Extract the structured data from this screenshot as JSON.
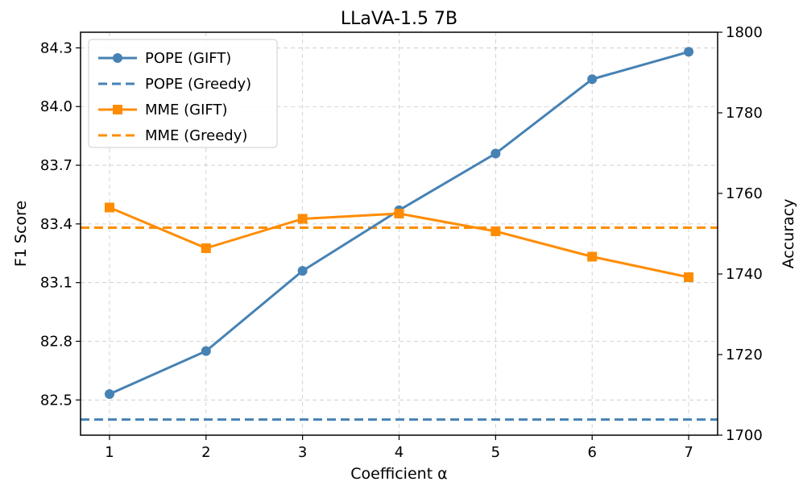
{
  "chart_data": {
    "type": "line",
    "title": "LLaVA-1.5 7B",
    "xlabel": "Coefficient α",
    "ylabel_left": "F1 Score",
    "ylabel_right": "Accuracy",
    "x": [
      1,
      2,
      3,
      4,
      5,
      6,
      7
    ],
    "x_ticks": [
      "1",
      "2",
      "3",
      "4",
      "5",
      "6",
      "7"
    ],
    "xlim": [
      0.7,
      7.3
    ],
    "ylim_left": [
      82.32,
      84.38
    ],
    "ylim_right": [
      1700,
      1800
    ],
    "y_ticks_left": [
      "82.5",
      "82.8",
      "83.1",
      "83.4",
      "83.7",
      "84.0",
      "84.3"
    ],
    "y_ticks_right": [
      "1700",
      "1720",
      "1740",
      "1760",
      "1780",
      "1800"
    ],
    "grid": true,
    "legend_position": "top-left",
    "series": [
      {
        "name": "POPE (GIFT)",
        "axis": "left",
        "kind": "line",
        "marker": "circle",
        "color": "#4682B4",
        "values": [
          82.53,
          82.75,
          83.16,
          83.47,
          83.76,
          84.14,
          84.28
        ]
      },
      {
        "name": "POPE (Greedy)",
        "axis": "left",
        "kind": "hline",
        "color": "#4682B4",
        "value": 82.4
      },
      {
        "name": "MME (GIFT)",
        "axis": "right",
        "kind": "line",
        "marker": "square",
        "color": "#FF8C00",
        "values": [
          1756.5,
          1746.4,
          1753.7,
          1755.0,
          1750.6,
          1744.3,
          1739.2
        ]
      },
      {
        "name": "MME (Greedy)",
        "axis": "right",
        "kind": "hline",
        "color": "#FF8C00",
        "value": 1751.5
      }
    ]
  }
}
